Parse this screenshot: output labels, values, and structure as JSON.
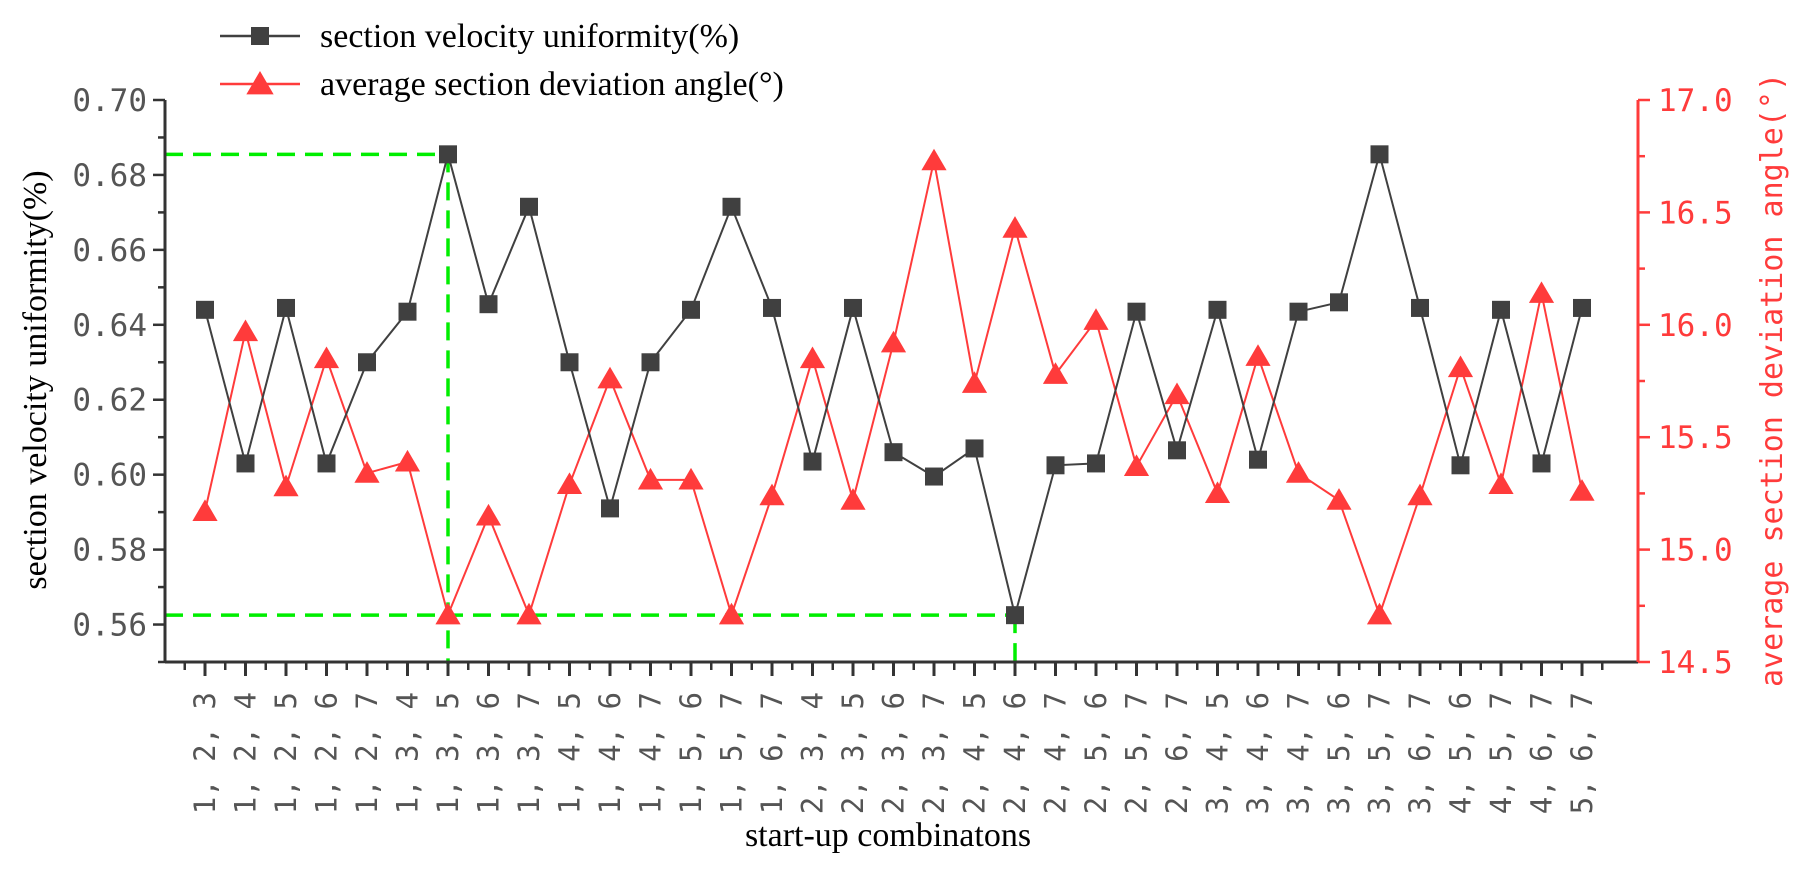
{
  "chart_data": {
    "type": "line",
    "title": "",
    "xlabel": "start-up combinatons",
    "ylabel_left": "section velocity uniformity(%)",
    "ylabel_right": "average section deviation angle(°)",
    "categories": [
      "1, 2, 3",
      "1, 2, 4",
      "1, 2, 5",
      "1, 2, 6",
      "1, 2, 7",
      "1, 3, 4",
      "1, 3, 5",
      "1, 3, 6",
      "1, 3, 7",
      "1, 4, 5",
      "1, 4, 6",
      "1, 4, 7",
      "1, 5, 6",
      "1, 5, 7",
      "1, 6, 7",
      "2, 3, 4",
      "2, 3, 5",
      "2, 3, 6",
      "2, 3, 7",
      "2, 4, 5",
      "2, 4, 6",
      "2, 4, 7",
      "2, 5, 6",
      "2, 5, 7",
      "2, 6, 7",
      "3, 4, 5",
      "3, 4, 6",
      "3, 4, 7",
      "3, 5, 6",
      "3, 5, 7",
      "3, 6, 7",
      "4, 5, 6",
      "4, 5, 7",
      "4, 6, 7",
      "5, 6, 7"
    ],
    "ylim_left": [
      0.55,
      0.7
    ],
    "yticks_left": [
      "0.56",
      "0.58",
      "0.60",
      "0.62",
      "0.64",
      "0.66",
      "0.68",
      "0.70"
    ],
    "ylim_right": [
      14.5,
      17.0
    ],
    "yticks_right": [
      "14.5",
      "15.0",
      "15.5",
      "16.0",
      "16.5",
      "17.0"
    ],
    "series": [
      {
        "name": "section velocity uniformity(%)",
        "axis": "left",
        "color": "#404040",
        "marker": "square",
        "values": [
          0.644,
          0.603,
          0.6445,
          0.603,
          0.63,
          0.6435,
          0.6855,
          0.6455,
          0.6715,
          0.63,
          0.591,
          0.63,
          0.644,
          0.6715,
          0.6445,
          0.6035,
          0.6445,
          0.606,
          0.5995,
          0.607,
          0.5625,
          0.6025,
          0.603,
          0.6435,
          0.6065,
          0.644,
          0.604,
          0.6435,
          0.646,
          0.6855,
          0.6445,
          0.6025,
          0.644,
          0.603,
          0.6445
        ]
      },
      {
        "name": "average section deviation angle(°)",
        "axis": "right",
        "color": "#ff3b3b",
        "marker": "triangle",
        "values": [
          15.17,
          15.97,
          15.28,
          15.85,
          15.34,
          15.39,
          14.71,
          15.15,
          14.71,
          15.29,
          15.76,
          15.31,
          15.31,
          14.71,
          15.24,
          15.85,
          15.22,
          15.92,
          16.73,
          15.74,
          16.43,
          15.78,
          16.02,
          15.37,
          15.69,
          15.25,
          15.86,
          15.34,
          15.22,
          14.71,
          15.24,
          15.81,
          15.29,
          16.14,
          15.26
        ]
      }
    ],
    "annotations": [
      {
        "type": "dashed-guide",
        "color": "#00ee00",
        "value": 0.6855,
        "category": "1, 3, 5"
      },
      {
        "type": "dashed-guide",
        "color": "#00ee00",
        "value": 0.5625,
        "category": "2, 4, 6"
      }
    ],
    "legend": "top-left"
  }
}
